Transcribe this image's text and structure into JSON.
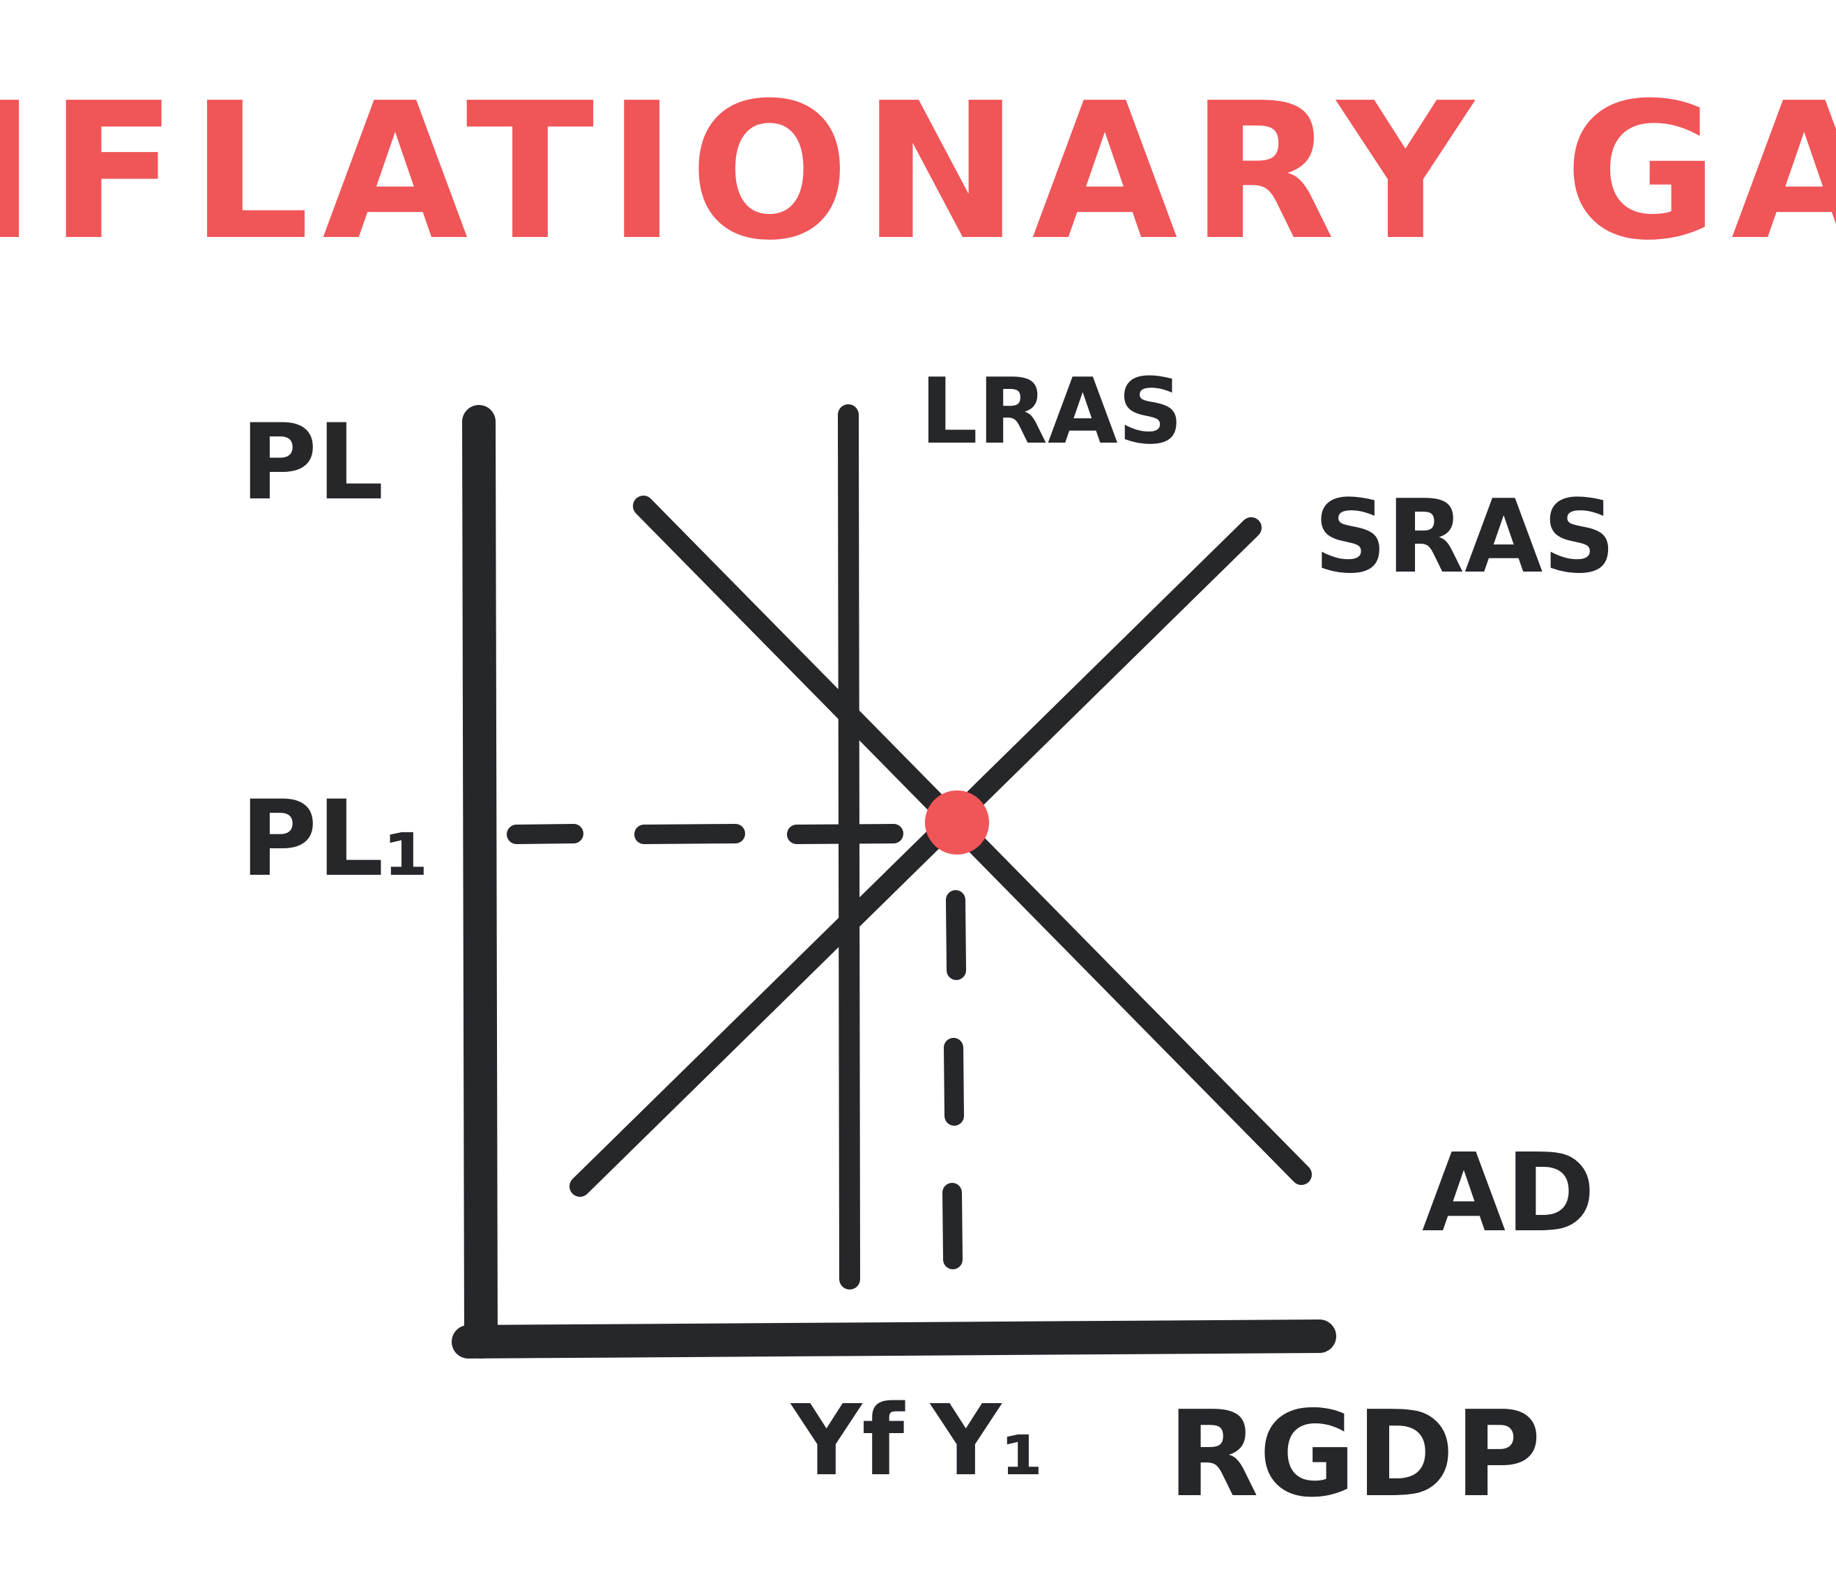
{
  "title": "INFLATIONARY GAP",
  "axes": {
    "y_label": "PL",
    "x_label": "RGDP"
  },
  "curves": {
    "lras_label": "LRAS",
    "sras_label": "SRAS",
    "ad_label": "AD"
  },
  "markers": {
    "price_level_label": "PL₁",
    "full_employment_output_label": "Yf",
    "equilibrium_output_label": "Y₁"
  },
  "colors": {
    "ink": "#26272b",
    "accent": "#f05558",
    "background": "#ffffff"
  }
}
